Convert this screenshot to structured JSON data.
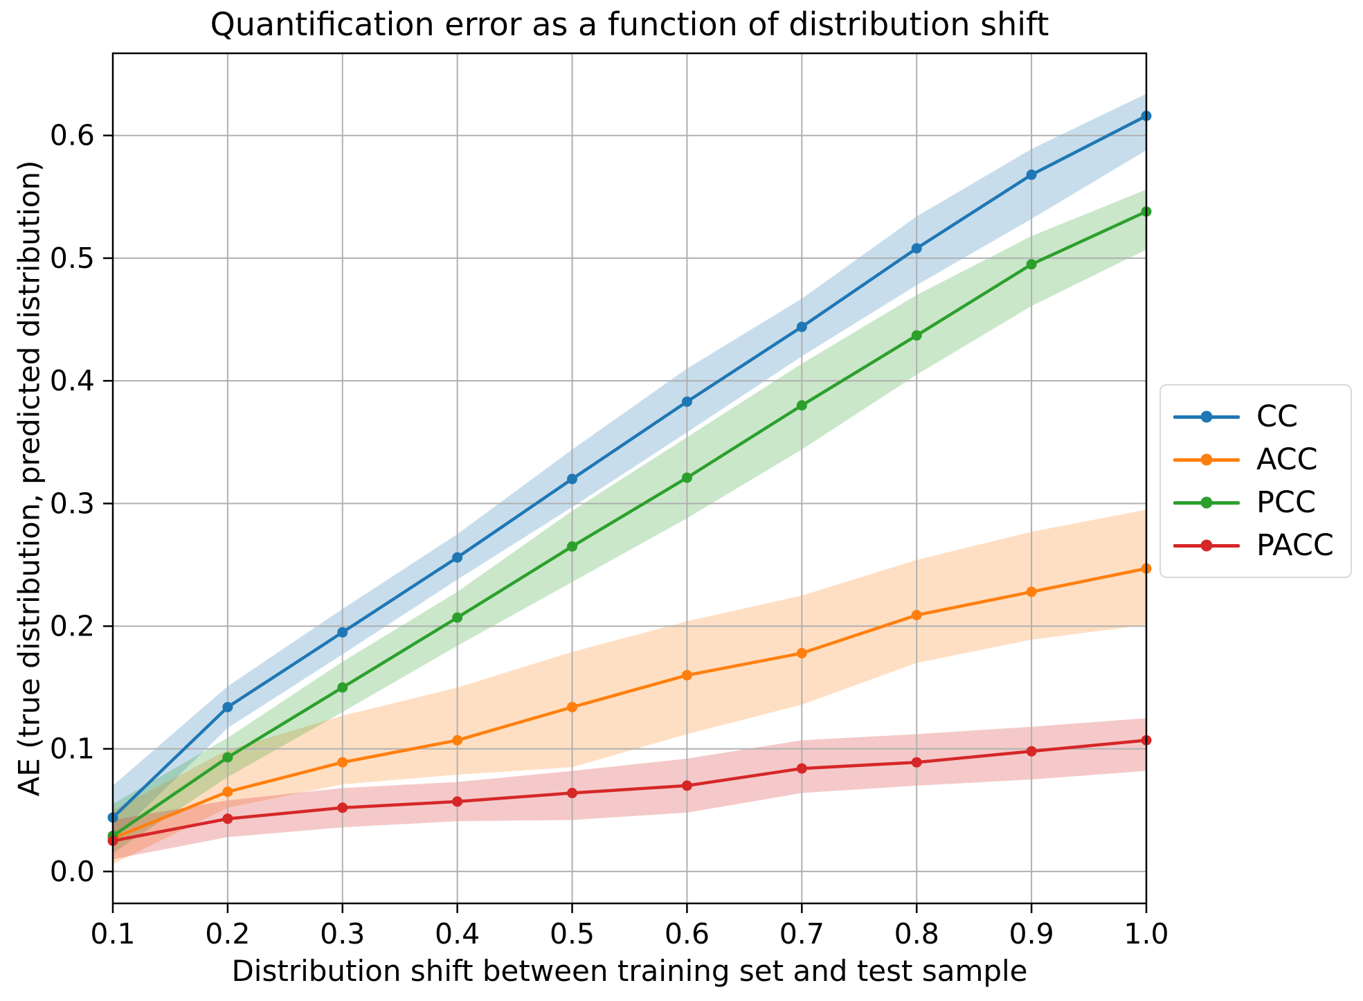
{
  "chart_data": {
    "type": "line",
    "title": "Quantification error as a function of distribution shift",
    "xlabel": "Distribution shift between training set and test sample",
    "ylabel": "AE (true distribution, predicted distribution)",
    "x": [
      0.1,
      0.2,
      0.3,
      0.4,
      0.5,
      0.6,
      0.7,
      0.8,
      0.9,
      1.0
    ],
    "xticks": [
      "0.1",
      "0.2",
      "0.3",
      "0.4",
      "0.5",
      "0.6",
      "0.7",
      "0.8",
      "0.9",
      "1.0"
    ],
    "yticks": [
      "0.0",
      "0.1",
      "0.2",
      "0.3",
      "0.4",
      "0.5",
      "0.6"
    ],
    "xlim": [
      0.1,
      1.0
    ],
    "ylim": [
      -0.026,
      0.667
    ],
    "grid": true,
    "grid_color": "#b0b0b0",
    "legend_position": "center right outside",
    "band_alpha": 0.25,
    "series": [
      {
        "name": "CC",
        "color": "#1f77b4",
        "values": [
          0.044,
          0.134,
          0.195,
          0.256,
          0.32,
          0.383,
          0.444,
          0.508,
          0.568,
          0.616
        ],
        "band_lower": [
          0.026,
          0.117,
          0.177,
          0.238,
          0.297,
          0.358,
          0.42,
          0.478,
          0.532,
          0.588
        ],
        "band_upper": [
          0.07,
          0.151,
          0.214,
          0.275,
          0.344,
          0.41,
          0.467,
          0.534,
          0.589,
          0.634
        ]
      },
      {
        "name": "ACC",
        "color": "#ff7f0e",
        "values": [
          0.027,
          0.065,
          0.089,
          0.107,
          0.134,
          0.16,
          0.178,
          0.209,
          0.228,
          0.247
        ],
        "band_lower": [
          0.006,
          0.052,
          0.071,
          0.079,
          0.085,
          0.112,
          0.136,
          0.17,
          0.189,
          0.201
        ],
        "band_upper": [
          0.05,
          0.099,
          0.127,
          0.15,
          0.179,
          0.204,
          0.225,
          0.254,
          0.277,
          0.295
        ]
      },
      {
        "name": "PCC",
        "color": "#2ca02c",
        "values": [
          0.029,
          0.093,
          0.15,
          0.207,
          0.265,
          0.321,
          0.38,
          0.437,
          0.495,
          0.538
        ],
        "band_lower": [
          0.015,
          0.077,
          0.13,
          0.184,
          0.236,
          0.288,
          0.344,
          0.405,
          0.461,
          0.507
        ],
        "band_upper": [
          0.055,
          0.109,
          0.171,
          0.228,
          0.294,
          0.354,
          0.414,
          0.47,
          0.518,
          0.556
        ]
      },
      {
        "name": "PACC",
        "color": "#d62728",
        "values": [
          0.025,
          0.043,
          0.052,
          0.057,
          0.064,
          0.07,
          0.084,
          0.089,
          0.098,
          0.107
        ],
        "band_lower": [
          0.01,
          0.028,
          0.036,
          0.041,
          0.042,
          0.048,
          0.064,
          0.07,
          0.075,
          0.082
        ],
        "band_upper": [
          0.042,
          0.058,
          0.068,
          0.073,
          0.082,
          0.092,
          0.107,
          0.112,
          0.118,
          0.125
        ]
      }
    ]
  }
}
